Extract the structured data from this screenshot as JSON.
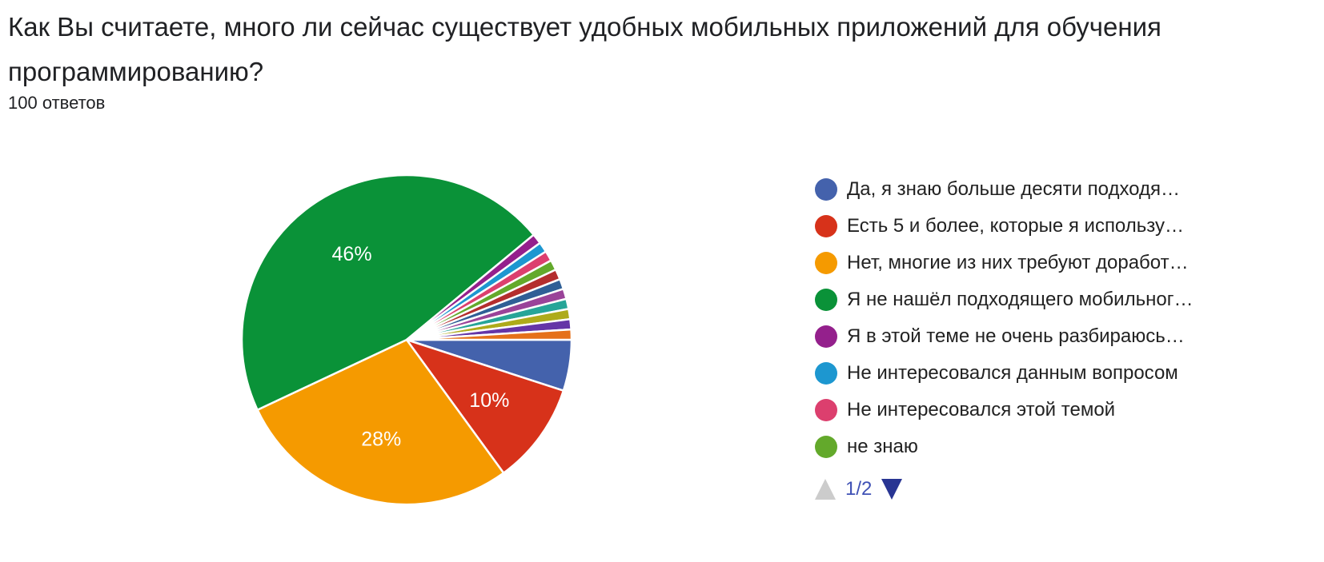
{
  "question": "Как Вы считаете, много ли сейчас существует удобных мобильных приложений для обучения программированию?",
  "responses": "100 ответов",
  "chart_data": {
    "type": "pie",
    "values": [
      5,
      10,
      28,
      46,
      1,
      1,
      1,
      1,
      1,
      1,
      1,
      1,
      1,
      1,
      1
    ],
    "colors": [
      "#4462ac",
      "#d7321a",
      "#f59a00",
      "#0a9238",
      "#94208c",
      "#1d97d0",
      "#dc3f6e",
      "#63a92b",
      "#b42e2e",
      "#2f5f96",
      "#9a4399",
      "#26a598",
      "#aeab1a",
      "#6535a7",
      "#e5711a"
    ],
    "slice_labels": [
      "",
      "10%",
      "28%",
      "46%",
      "",
      "",
      "",
      "",
      "",
      "",
      "",
      "",
      "",
      "",
      ""
    ],
    "legend": [
      "Да, я знаю больше десяти подходя…",
      "Есть 5 и более, которые я использу…",
      "Нет, многие из них требуют доработ…",
      "Я не нашёл подходящего мобильног…",
      "Я в этой теме не очень разбираюсь…",
      "Не интересовался данным вопросом",
      "Не интересовался этой темой",
      "не знаю"
    ],
    "legend_placement": "right",
    "legend_page": "1/2"
  }
}
